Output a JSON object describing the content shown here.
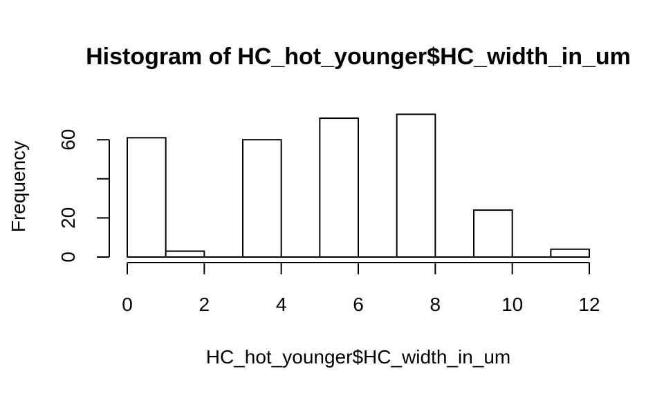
{
  "chart_data": {
    "type": "bar",
    "title": "Histogram of HC_hot_younger$HC_width_in_um",
    "xlabel": "HC_hot_younger$HC_width_in_um",
    "ylabel": "Frequency",
    "bins": [
      {
        "x0": 0,
        "x1": 1,
        "count": 61
      },
      {
        "x0": 1,
        "x1": 2,
        "count": 3
      },
      {
        "x0": 2,
        "x1": 3,
        "count": 0
      },
      {
        "x0": 3,
        "x1": 4,
        "count": 60
      },
      {
        "x0": 4,
        "x1": 5,
        "count": 0
      },
      {
        "x0": 5,
        "x1": 6,
        "count": 71
      },
      {
        "x0": 6,
        "x1": 7,
        "count": 0
      },
      {
        "x0": 7,
        "x1": 8,
        "count": 73
      },
      {
        "x0": 8,
        "x1": 9,
        "count": 0
      },
      {
        "x0": 9,
        "x1": 10,
        "count": 24
      },
      {
        "x0": 10,
        "x1": 11,
        "count": 0
      },
      {
        "x0": 11,
        "x1": 12,
        "count": 4
      }
    ],
    "xlim": [
      0,
      12
    ],
    "ylim": [
      0,
      73
    ],
    "x_ticks": [
      0,
      2,
      4,
      6,
      8,
      10,
      12
    ],
    "y_ticks": [
      0,
      20,
      40,
      60
    ],
    "y_tick_labels": [
      "0",
      "20",
      "",
      "60"
    ],
    "grid": false,
    "legend": "none"
  }
}
